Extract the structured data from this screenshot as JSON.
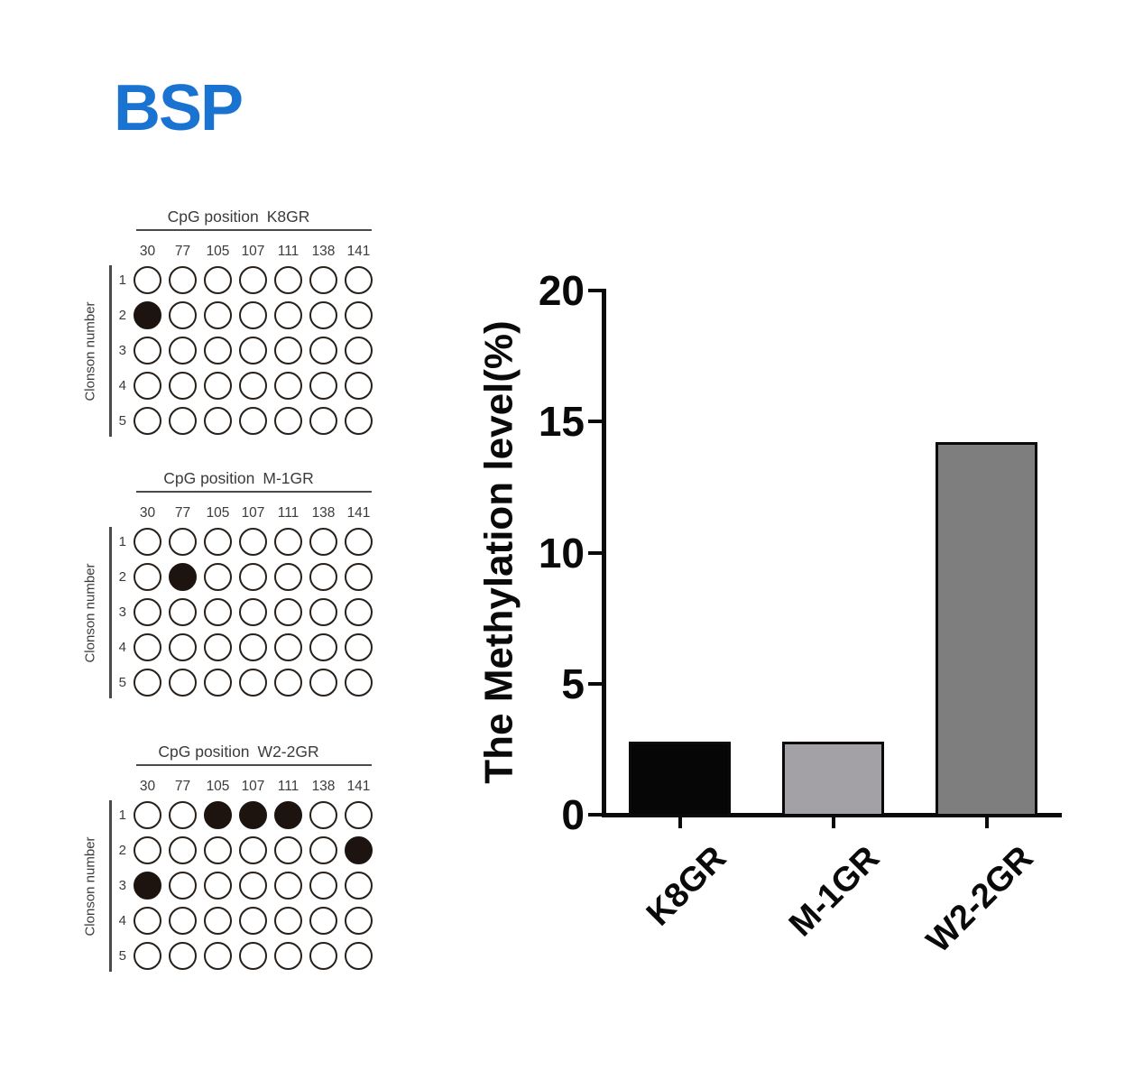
{
  "title": {
    "text": "BSP",
    "color": "#1a73d1"
  },
  "grids": [
    {
      "title_prefix": "CpG position",
      "sample": "K8GR",
      "columns": [
        "30",
        "77",
        "105",
        "107",
        "111",
        "138",
        "141"
      ],
      "row_axis_label": "Clonson number",
      "rows": [
        "1",
        "2",
        "3",
        "4",
        "5"
      ],
      "filled_cells": [
        {
          "row": "2",
          "col": "30"
        }
      ]
    },
    {
      "title_prefix": "CpG position",
      "sample": "M-1GR",
      "columns": [
        "30",
        "77",
        "105",
        "107",
        "111",
        "138",
        "141"
      ],
      "row_axis_label": "Clonson number",
      "rows": [
        "1",
        "2",
        "3",
        "4",
        "5"
      ],
      "filled_cells": [
        {
          "row": "2",
          "col": "77"
        }
      ]
    },
    {
      "title_prefix": "CpG position",
      "sample": "W2-2GR",
      "columns": [
        "30",
        "77",
        "105",
        "107",
        "111",
        "138",
        "141"
      ],
      "row_axis_label": "Clonson number",
      "rows": [
        "1",
        "2",
        "3",
        "4",
        "5"
      ],
      "filled_cells": [
        {
          "row": "1",
          "col": "105"
        },
        {
          "row": "1",
          "col": "107"
        },
        {
          "row": "1",
          "col": "111"
        },
        {
          "row": "2",
          "col": "141"
        },
        {
          "row": "3",
          "col": "30"
        }
      ]
    }
  ],
  "chart_data": {
    "type": "bar",
    "categories": [
      "K8GR",
      "M-1GR",
      "W2-2GR"
    ],
    "values": [
      2.86,
      2.86,
      14.29
    ],
    "bar_colors": [
      "#060606",
      "#a3a1a5",
      "#7e7e7e"
    ],
    "title": "",
    "xlabel": "",
    "ylabel": "The Methylation level(%)",
    "ylim": [
      0,
      20
    ],
    "yticks": [
      0,
      5,
      10,
      15,
      20
    ],
    "grid": false,
    "legend": false
  }
}
